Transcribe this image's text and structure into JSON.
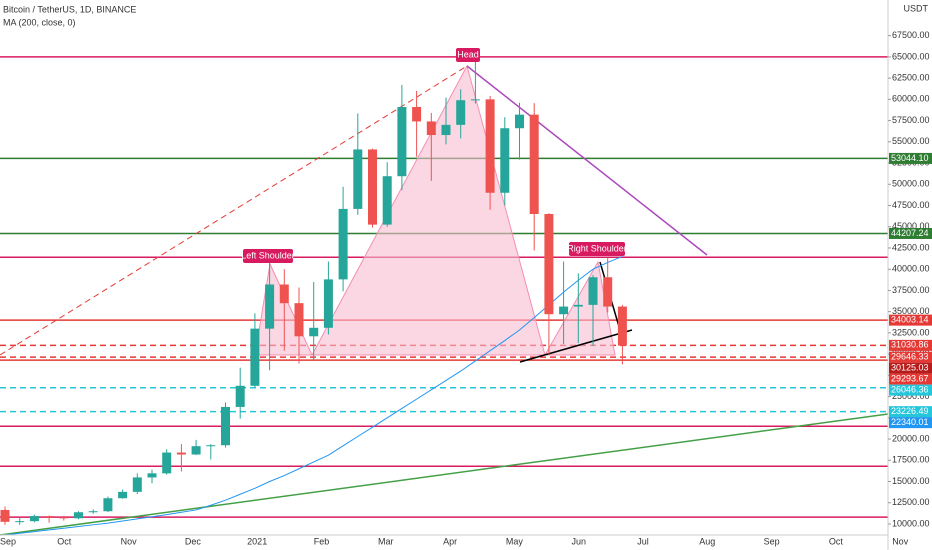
{
  "chart_data": {
    "type": "candlestick",
    "title": "Bitcoin / TetherUS, 1D, BINANCE",
    "currency": "USDT",
    "colors": {
      "up": "#26a69a",
      "down": "#ef5350"
    },
    "open": [
      11650,
      10250,
      10330,
      10930,
      10780,
      10670,
      11380,
      11500,
      13030,
      13780,
      15480,
      15960,
      18410,
      18180,
      19160,
      19270,
      23780,
      26270,
      33000,
      38200,
      36000,
      32100,
      33100,
      38800,
      47100,
      54100,
      45250,
      50950,
      59100,
      57400,
      55800,
      57000,
      59900,
      60000,
      49000,
      56600,
      58200,
      46500,
      34700,
      35600,
      35800,
      39050,
      35600
    ],
    "high": [
      12050,
      10700,
      11100,
      10990,
      10950,
      11500,
      11720,
      13220,
      14060,
      15960,
      16400,
      18800,
      19400,
      19900,
      19400,
      24300,
      28400,
      34800,
      41950,
      40000,
      37850,
      38500,
      40900,
      49700,
      58350,
      54200,
      52600,
      61700,
      61000,
      58400,
      60200,
      61200,
      64850,
      60400,
      57900,
      59600,
      59550,
      46600,
      40900,
      39500,
      39300,
      41300,
      35800
    ],
    "low": [
      9900,
      9900,
      10200,
      10150,
      10400,
      10550,
      11200,
      11400,
      12980,
      13520,
      14800,
      15800,
      16200,
      18100,
      17600,
      19000,
      22400,
      26100,
      28100,
      30400,
      28900,
      29300,
      32300,
      37400,
      46400,
      44900,
      45000,
      49300,
      53250,
      50400,
      54700,
      55400,
      59500,
      47000,
      47500,
      52900,
      42200,
      30000,
      31200,
      31300,
      31000,
      34900,
      28800
    ],
    "close": [
      10250,
      10330,
      10930,
      10780,
      10670,
      11380,
      11500,
      13030,
      13780,
      15480,
      15960,
      18410,
      18180,
      19160,
      19270,
      23780,
      26270,
      33000,
      38200,
      36000,
      32100,
      33100,
      38800,
      47100,
      54100,
      45250,
      50950,
      59100,
      57400,
      55800,
      57000,
      59900,
      60000,
      49000,
      56600,
      58200,
      46500,
      34700,
      35600,
      35800,
      39050,
      35600,
      31000
    ],
    "series": [
      {
        "name": "MA (200, close, 0)",
        "color": "#2196f3",
        "values": [
          8700,
          8900,
          9100,
          9300,
          9500,
          9700,
          9900,
          10100,
          10350,
          10600,
          10850,
          11100,
          11380,
          11650,
          12200,
          12800,
          13500,
          14200,
          15000,
          15700,
          16500,
          17300,
          18100,
          19200,
          20300,
          21400,
          22500,
          23600,
          24700,
          25800,
          26900,
          28000,
          29200,
          30400,
          31600,
          32840,
          34300,
          35800,
          37300,
          38700,
          40000,
          40800,
          41500
        ]
      }
    ],
    "x_labels": [
      "Sep",
      "Oct",
      "Nov",
      "Dec",
      "2021",
      "Feb",
      "Mar",
      "Apr",
      "May",
      "Jun",
      "Jul",
      "Aug",
      "Sep",
      "Oct",
      "Nov"
    ],
    "ylim": [
      8700,
      71700
    ],
    "yticks": [
      {
        "value": 10000,
        "label": "10000.00"
      },
      {
        "value": 12500,
        "label": "12500.00"
      },
      {
        "value": 15000,
        "label": "15000.00"
      },
      {
        "value": 17500,
        "label": "17500.00"
      },
      {
        "value": 20000,
        "label": "20000.00"
      },
      {
        "value": 22500,
        "label": "22500.00"
      },
      {
        "value": 25000,
        "label": "25000.00"
      },
      {
        "value": 27500,
        "label": "27500.00"
      },
      {
        "value": 30000,
        "label": "30000.00"
      },
      {
        "value": 32500,
        "label": "32500.00"
      },
      {
        "value": 35000,
        "label": "35000.00"
      },
      {
        "value": 37500,
        "label": "37500.00"
      },
      {
        "value": 40000,
        "label": "40000.00"
      },
      {
        "value": 42500,
        "label": "42500.00"
      },
      {
        "value": 45000,
        "label": "45000.00"
      },
      {
        "value": 47500,
        "label": "47500.00"
      },
      {
        "value": 50000,
        "label": "50000.00"
      },
      {
        "value": 52500,
        "label": "52500.00"
      },
      {
        "value": 55000,
        "label": "55000.00"
      },
      {
        "value": 57500,
        "label": "57500.00"
      },
      {
        "value": 60000,
        "label": "60000.00"
      },
      {
        "value": 62500,
        "label": "62500.00"
      },
      {
        "value": 65000,
        "label": "65000.00"
      },
      {
        "value": 67500,
        "label": "67500.00"
      }
    ],
    "levels": [
      {
        "value": 65000,
        "color": "#d81b60",
        "style": "solid"
      },
      {
        "value": 53044.1,
        "label": "53044.10",
        "color": "#2e7d32",
        "style": "solid"
      },
      {
        "value": 44207.24,
        "label": "44207.24",
        "color": "#2e7d32",
        "style": "solid"
      },
      {
        "value": 41400,
        "color": "#d81b60",
        "style": "solid"
      },
      {
        "value": 34003.14,
        "label": "34003.14",
        "color": "#e53935",
        "style": "solid"
      },
      {
        "value": 31030.86,
        "label": "31030.86",
        "color": "#e53935",
        "style": "dashed"
      },
      {
        "value": 29646.33,
        "label": "29646.33",
        "color": "#e53935",
        "style": "dashed"
      },
      {
        "value": 30125.03,
        "label": "30125.03",
        "color": "#b71c1c",
        "style": "none"
      },
      {
        "value": 29293.67,
        "label": "29293.67",
        "color": "#e53935",
        "style": "solid"
      },
      {
        "value": 26046.36,
        "label": "26046.36",
        "color": "#26c6da",
        "style": "dashed"
      },
      {
        "value": 23226.49,
        "label": "23226.49",
        "color": "#26c6da",
        "style": "dashed"
      },
      {
        "value": 22340.01,
        "label": "22340.01",
        "color": "#2196f3",
        "style": "none"
      },
      {
        "value": 21500,
        "color": "#d81b60",
        "style": "solid"
      },
      {
        "value": 16800,
        "color": "#d81b60",
        "style": "solid"
      },
      {
        "value": 10800,
        "color": "#d81b60",
        "style": "solid"
      }
    ],
    "annotations": {
      "head": "Head",
      "left_shoulder": "Left Shoulder",
      "right_shoulder": "Right Shoulder"
    }
  }
}
